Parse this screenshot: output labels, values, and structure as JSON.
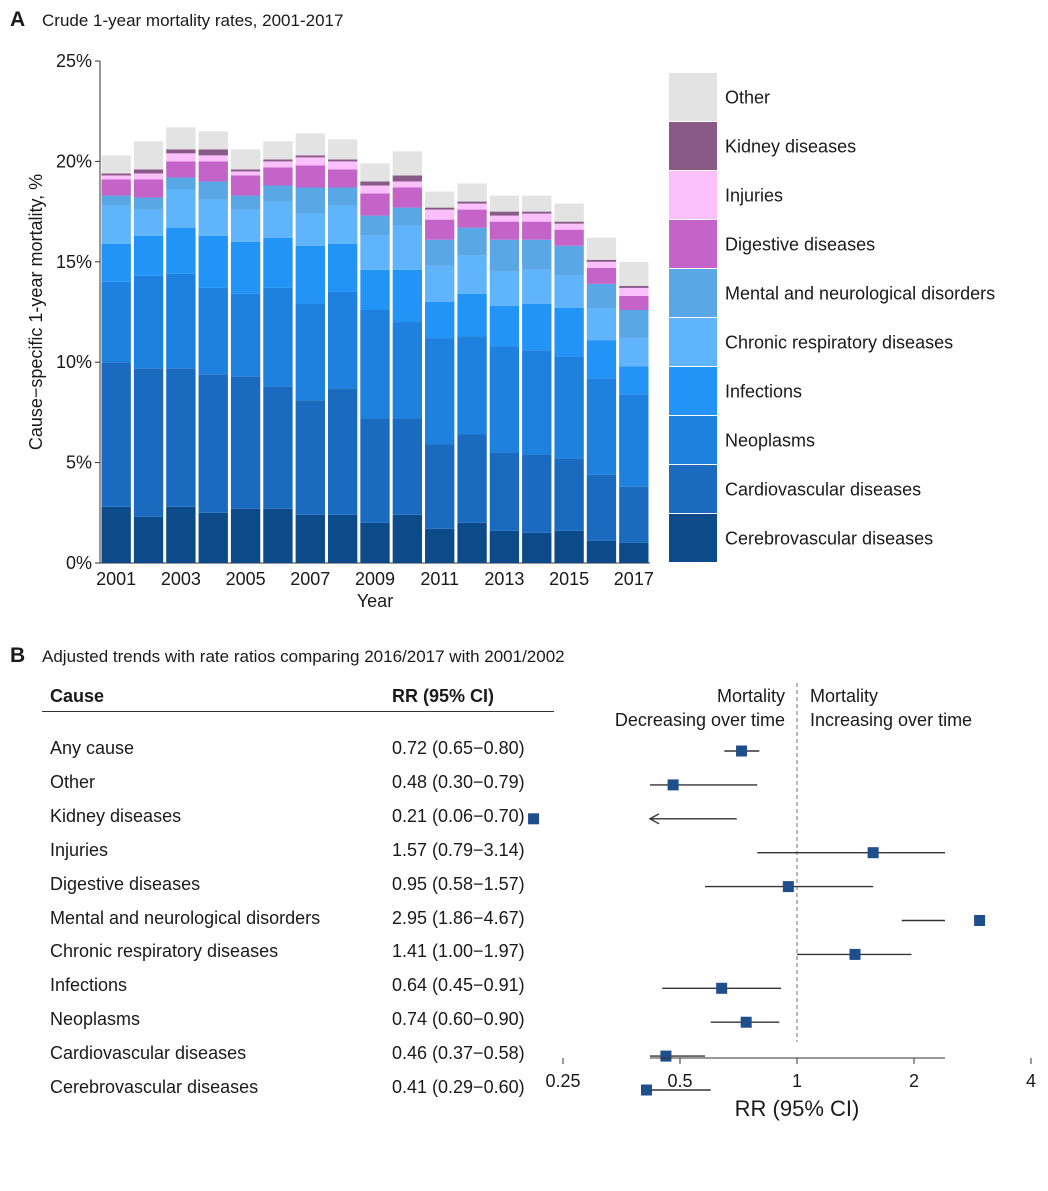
{
  "panel_a": {
    "letter": "A",
    "title": "Crude 1-year mortality rates, 2001-2017"
  },
  "panel_b": {
    "letter": "B",
    "title": "Adjusted trends with rate ratios comparing 2016/2017 with 2001/2002",
    "col_cause": "Cause",
    "col_rr": "RR (95% CI)",
    "header_left_line1": "Mortality",
    "header_left_line2": "Decreasing over time",
    "header_right_line1": "Mortality",
    "header_right_line2": "Increasing over time"
  },
  "chart_data": [
    {
      "type": "bar",
      "stacked": true,
      "xlabel": "Year",
      "ylabel": "Cause−specific 1-year mortality, %",
      "ylim": [
        0,
        25
      ],
      "yticks": [
        "0%",
        "5%",
        "10%",
        "15%",
        "20%",
        "25%"
      ],
      "yticks_values": [
        0,
        5,
        10,
        15,
        20,
        25
      ],
      "xtick_labels": [
        "2001",
        "2003",
        "2005",
        "2007",
        "2009",
        "2011",
        "2013",
        "2015",
        "2017"
      ],
      "categories": [
        "2001",
        "2002",
        "2003",
        "2004",
        "2005",
        "2006",
        "2007",
        "2008",
        "2009",
        "2010",
        "2011",
        "2012",
        "2013",
        "2014",
        "2015",
        "2016",
        "2017"
      ],
      "legend_position": "right",
      "series": [
        {
          "name": "Cerebrovascular diseases",
          "color": "#0d4a8a",
          "values": [
            2.8,
            2.3,
            2.8,
            2.5,
            2.7,
            2.7,
            2.4,
            2.4,
            2.0,
            2.4,
            1.7,
            2.0,
            1.6,
            1.5,
            1.6,
            1.1,
            1.0
          ]
        },
        {
          "name": "Cardiovascular diseases",
          "color": "#1a6bc0",
          "values": [
            7.2,
            7.4,
            6.9,
            6.9,
            6.6,
            6.1,
            5.7,
            6.3,
            5.2,
            4.8,
            4.2,
            4.4,
            3.9,
            3.9,
            3.6,
            3.3,
            2.8
          ]
        },
        {
          "name": "Neoplasms",
          "color": "#1e80df",
          "values": [
            4.0,
            4.6,
            4.7,
            4.3,
            4.1,
            4.9,
            4.8,
            4.8,
            5.4,
            4.8,
            5.3,
            4.9,
            5.3,
            5.2,
            5.1,
            4.8,
            4.6
          ]
        },
        {
          "name": "Infections",
          "color": "#2293f7",
          "values": [
            1.9,
            2.0,
            2.3,
            2.6,
            2.6,
            2.5,
            2.9,
            2.4,
            2.0,
            2.6,
            1.8,
            2.1,
            2.0,
            2.3,
            2.4,
            1.9,
            1.4
          ]
        },
        {
          "name": "Chronic respiratory diseases",
          "color": "#60b4fb",
          "values": [
            1.9,
            1.3,
            1.9,
            1.8,
            1.6,
            1.8,
            1.6,
            1.9,
            1.7,
            2.2,
            1.8,
            1.9,
            1.7,
            1.7,
            1.6,
            1.6,
            1.4
          ]
        },
        {
          "name": "Mental and neurological disorders",
          "color": "#5aa7e6",
          "values": [
            0.5,
            0.6,
            0.6,
            0.9,
            0.7,
            0.8,
            1.3,
            0.9,
            1.0,
            0.9,
            1.3,
            1.4,
            1.6,
            1.5,
            1.5,
            1.2,
            1.4
          ]
        },
        {
          "name": "Digestive diseases",
          "color": "#c463c8",
          "values": [
            0.8,
            0.9,
            0.8,
            1.0,
            1.0,
            0.9,
            1.1,
            0.9,
            1.1,
            1.0,
            1.0,
            0.9,
            0.9,
            0.9,
            0.8,
            0.8,
            0.7
          ]
        },
        {
          "name": "Injuries",
          "color": "#fbbffb",
          "values": [
            0.2,
            0.3,
            0.4,
            0.3,
            0.2,
            0.3,
            0.4,
            0.4,
            0.4,
            0.3,
            0.5,
            0.3,
            0.3,
            0.4,
            0.3,
            0.3,
            0.4
          ]
        },
        {
          "name": "Kidney diseases",
          "color": "#8a5a87",
          "values": [
            0.1,
            0.2,
            0.2,
            0.3,
            0.1,
            0.1,
            0.1,
            0.1,
            0.2,
            0.3,
            0.1,
            0.1,
            0.2,
            0.1,
            0.1,
            0.1,
            0.1
          ]
        },
        {
          "name": "Other",
          "color": "#e3e3e3",
          "values": [
            0.9,
            1.4,
            1.1,
            0.9,
            1.0,
            0.9,
            1.1,
            1.0,
            0.9,
            1.2,
            0.8,
            0.9,
            0.8,
            0.8,
            0.9,
            1.1,
            1.2
          ]
        }
      ]
    },
    {
      "type": "forest",
      "xlabel": "RR (95% CI)",
      "x_scale": "log",
      "xlim": [
        0.15,
        5.5
      ],
      "xticks": [
        0.25,
        0.5,
        1,
        2,
        4
      ],
      "xtick_labels": [
        "0.25",
        "0.5",
        "1",
        "2",
        "4"
      ],
      "reference_line": 1,
      "marker_color": "#1f4e8c",
      "rows": [
        {
          "cause": "Any cause",
          "rr_text": "0.72 (0.65−0.80)",
          "rr": 0.72,
          "lo": 0.65,
          "hi": 0.8,
          "arrow_left": false
        },
        {
          "cause": "Other",
          "rr_text": "0.48 (0.30−0.79)",
          "rr": 0.48,
          "lo": 0.3,
          "hi": 0.79,
          "arrow_left": false
        },
        {
          "cause": "Kidney diseases",
          "rr_text": "0.21 (0.06−0.70)",
          "rr": 0.21,
          "lo": 0.06,
          "hi": 0.7,
          "arrow_left": true
        },
        {
          "cause": "Injuries",
          "rr_text": "1.57 (0.79−3.14)",
          "rr": 1.57,
          "lo": 0.79,
          "hi": 3.14,
          "arrow_left": false
        },
        {
          "cause": "Digestive diseases",
          "rr_text": "0.95 (0.58−1.57)",
          "rr": 0.95,
          "lo": 0.58,
          "hi": 1.57,
          "arrow_left": false
        },
        {
          "cause": "Mental and neurological disorders",
          "rr_text": "2.95 (1.86−4.67)",
          "rr": 2.95,
          "lo": 1.86,
          "hi": 4.67,
          "arrow_left": false
        },
        {
          "cause": "Chronic respiratory diseases",
          "rr_text": "1.41 (1.00−1.97)",
          "rr": 1.41,
          "lo": 1.0,
          "hi": 1.97,
          "arrow_left": false
        },
        {
          "cause": "Infections",
          "rr_text": "0.64 (0.45−0.91)",
          "rr": 0.64,
          "lo": 0.45,
          "hi": 0.91,
          "arrow_left": false
        },
        {
          "cause": "Neoplasms",
          "rr_text": "0.74 (0.60−0.90)",
          "rr": 0.74,
          "lo": 0.6,
          "hi": 0.9,
          "arrow_left": false
        },
        {
          "cause": "Cardiovascular diseases",
          "rr_text": "0.46 (0.37−0.58)",
          "rr": 0.46,
          "lo": 0.37,
          "hi": 0.58,
          "arrow_left": false
        },
        {
          "cause": "Cerebrovascular diseases",
          "rr_text": "0.41 (0.29−0.60)",
          "rr": 0.41,
          "lo": 0.29,
          "hi": 0.6,
          "arrow_left": false
        }
      ]
    }
  ]
}
